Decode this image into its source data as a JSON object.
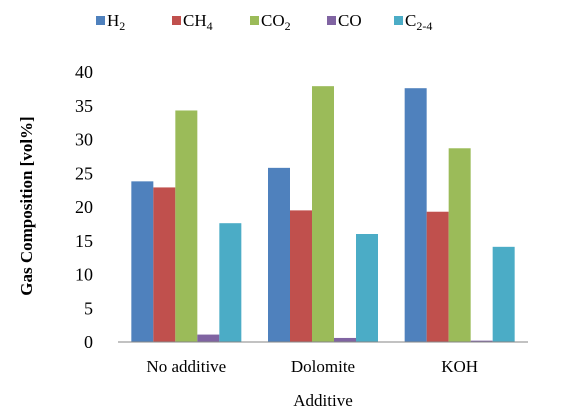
{
  "chart_data": {
    "type": "bar",
    "title": "",
    "xlabel": "Additive",
    "ylabel": "Gas Composition [vol%]",
    "ylim": [
      0,
      40
    ],
    "yticks": [
      0,
      5,
      10,
      15,
      20,
      25,
      30,
      35,
      40
    ],
    "categories": [
      "No additive",
      "Dolomite",
      "KOH"
    ],
    "grid": false,
    "legend_position": "top",
    "series": [
      {
        "key": "h2",
        "label": "H",
        "sub": "2",
        "color": "#4F81BD",
        "values": [
          23.8,
          25.8,
          37.6
        ]
      },
      {
        "key": "ch4",
        "label": "CH",
        "sub": "4",
        "color": "#C0504D",
        "values": [
          22.9,
          19.5,
          19.3
        ]
      },
      {
        "key": "co2",
        "label": "CO",
        "sub": "2",
        "color": "#9BBB59",
        "values": [
          34.3,
          37.9,
          28.7
        ]
      },
      {
        "key": "co",
        "label": "CO",
        "sub": "",
        "color": "#8064A2",
        "values": [
          1.1,
          0.6,
          0.2
        ]
      },
      {
        "key": "c24",
        "label": "C",
        "sub": "2-4",
        "color": "#4BACC6",
        "values": [
          17.6,
          16.0,
          14.1
        ]
      }
    ]
  }
}
